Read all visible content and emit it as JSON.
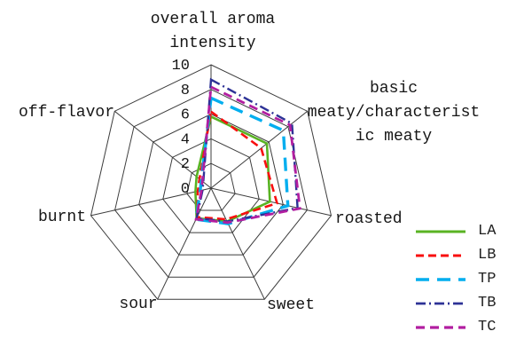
{
  "chart_data": {
    "type": "radar",
    "rmax": 10,
    "ring_step": 2,
    "tick_values": [
      0,
      2,
      4,
      6,
      8,
      10
    ],
    "grid_color": "#3c3c3c",
    "background": "#ffffff",
    "categories": [
      "overall aroma intensity",
      "basic meaty/characteristic meaty",
      "roasted",
      "sweet",
      "sour",
      "burnt",
      "off-flavor"
    ],
    "axis_display": {
      "overall": "overall aroma\nintensity",
      "basic_meaty": "basic\nmeaty/characterist\nic meaty",
      "roasted": "roasted",
      "sweet": "sweet",
      "sour": "sour",
      "burnt": "burnt",
      "off_flavor": "off-flavor"
    },
    "legend_position": "right",
    "series": [
      {
        "name": "LA",
        "color": "#59b323",
        "dash": "",
        "width": 2.6,
        "values": [
          5.8,
          5.8,
          4.9,
          3.0,
          2.7,
          1.3,
          1.5
        ]
      },
      {
        "name": "LB",
        "color": "#f80f0f",
        "dash": "9 5",
        "width": 2.6,
        "values": [
          6.2,
          5.2,
          5.5,
          2.8,
          2.6,
          1.1,
          1.2
        ]
      },
      {
        "name": "TP",
        "color": "#00aeef",
        "dash": "15 9",
        "width": 3.4,
        "values": [
          7.3,
          7.5,
          6.4,
          3.2,
          2.8,
          0.9,
          1.0
        ]
      },
      {
        "name": "TB",
        "color": "#2d3296",
        "dash": "11 4 2 4",
        "width": 2.4,
        "values": [
          8.8,
          8.4,
          7.2,
          3.0,
          2.7,
          0.7,
          0.8
        ]
      },
      {
        "name": "TC",
        "color": "#b21ea0",
        "dash": "10 6",
        "width": 2.8,
        "values": [
          8.2,
          8.2,
          7.4,
          3.1,
          2.8,
          0.8,
          0.9
        ]
      }
    ]
  },
  "legend": {
    "items": [
      {
        "label": "LA"
      },
      {
        "label": "LB"
      },
      {
        "label": "TP"
      },
      {
        "label": "TB"
      },
      {
        "label": "TC"
      }
    ]
  }
}
